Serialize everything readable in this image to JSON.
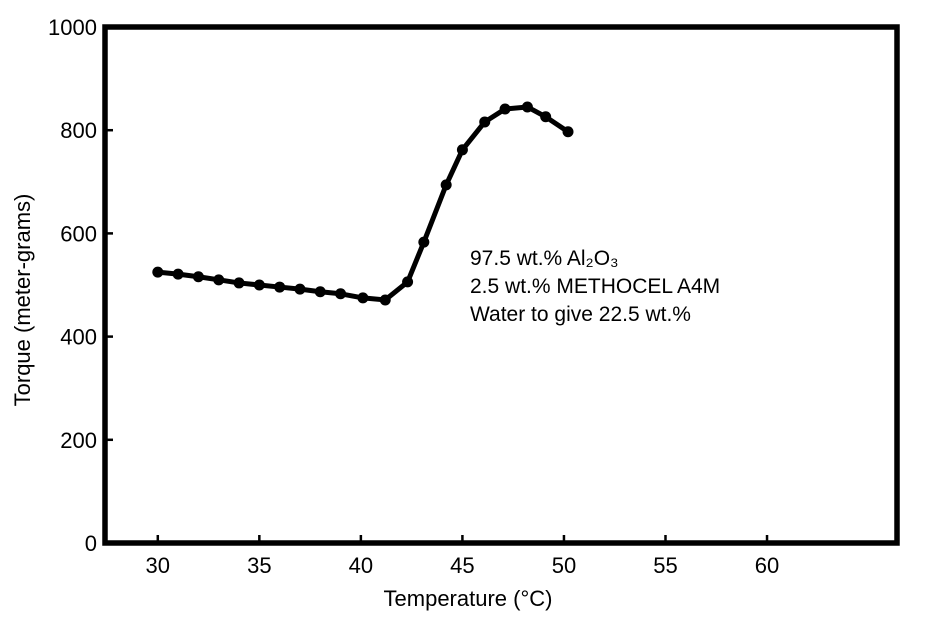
{
  "page": {
    "background": "#ffffff"
  },
  "chart_data": {
    "type": "line",
    "title": "",
    "xlabel": "Temperature (°C)",
    "ylabel": "Torque (meter-grams)",
    "series": [
      {
        "name": "torque-vs-temperature",
        "x": [
          30,
          31,
          32,
          33,
          34,
          35,
          36,
          37,
          38,
          39,
          40.1,
          41.2,
          42.3,
          43.1,
          44.2,
          45.0,
          46.1,
          47.1,
          48.2,
          49.1,
          50.2
        ],
        "y": [
          525,
          521,
          516,
          510,
          504,
          500,
          496,
          492,
          487,
          483,
          475,
          471,
          506,
          583,
          694,
          762,
          816,
          841,
          845,
          826,
          797
        ]
      }
    ],
    "xlim": [
      27.4,
      66.4
    ],
    "ylim": [
      0,
      1000
    ],
    "xticks": [
      30,
      35,
      40,
      45,
      50,
      55,
      60
    ],
    "yticks": [
      0,
      200,
      400,
      600,
      800,
      1000
    ],
    "grid": false,
    "legend": null,
    "color": "#000000",
    "line_width": 5,
    "marker": "circle",
    "marker_radius": 5.5,
    "annotation": {
      "lines": [
        "97.5 wt.% Al₂O₃",
        "2.5 wt.% METHOCEL A4M",
        "Water to give 22.5 wt.%"
      ]
    }
  }
}
